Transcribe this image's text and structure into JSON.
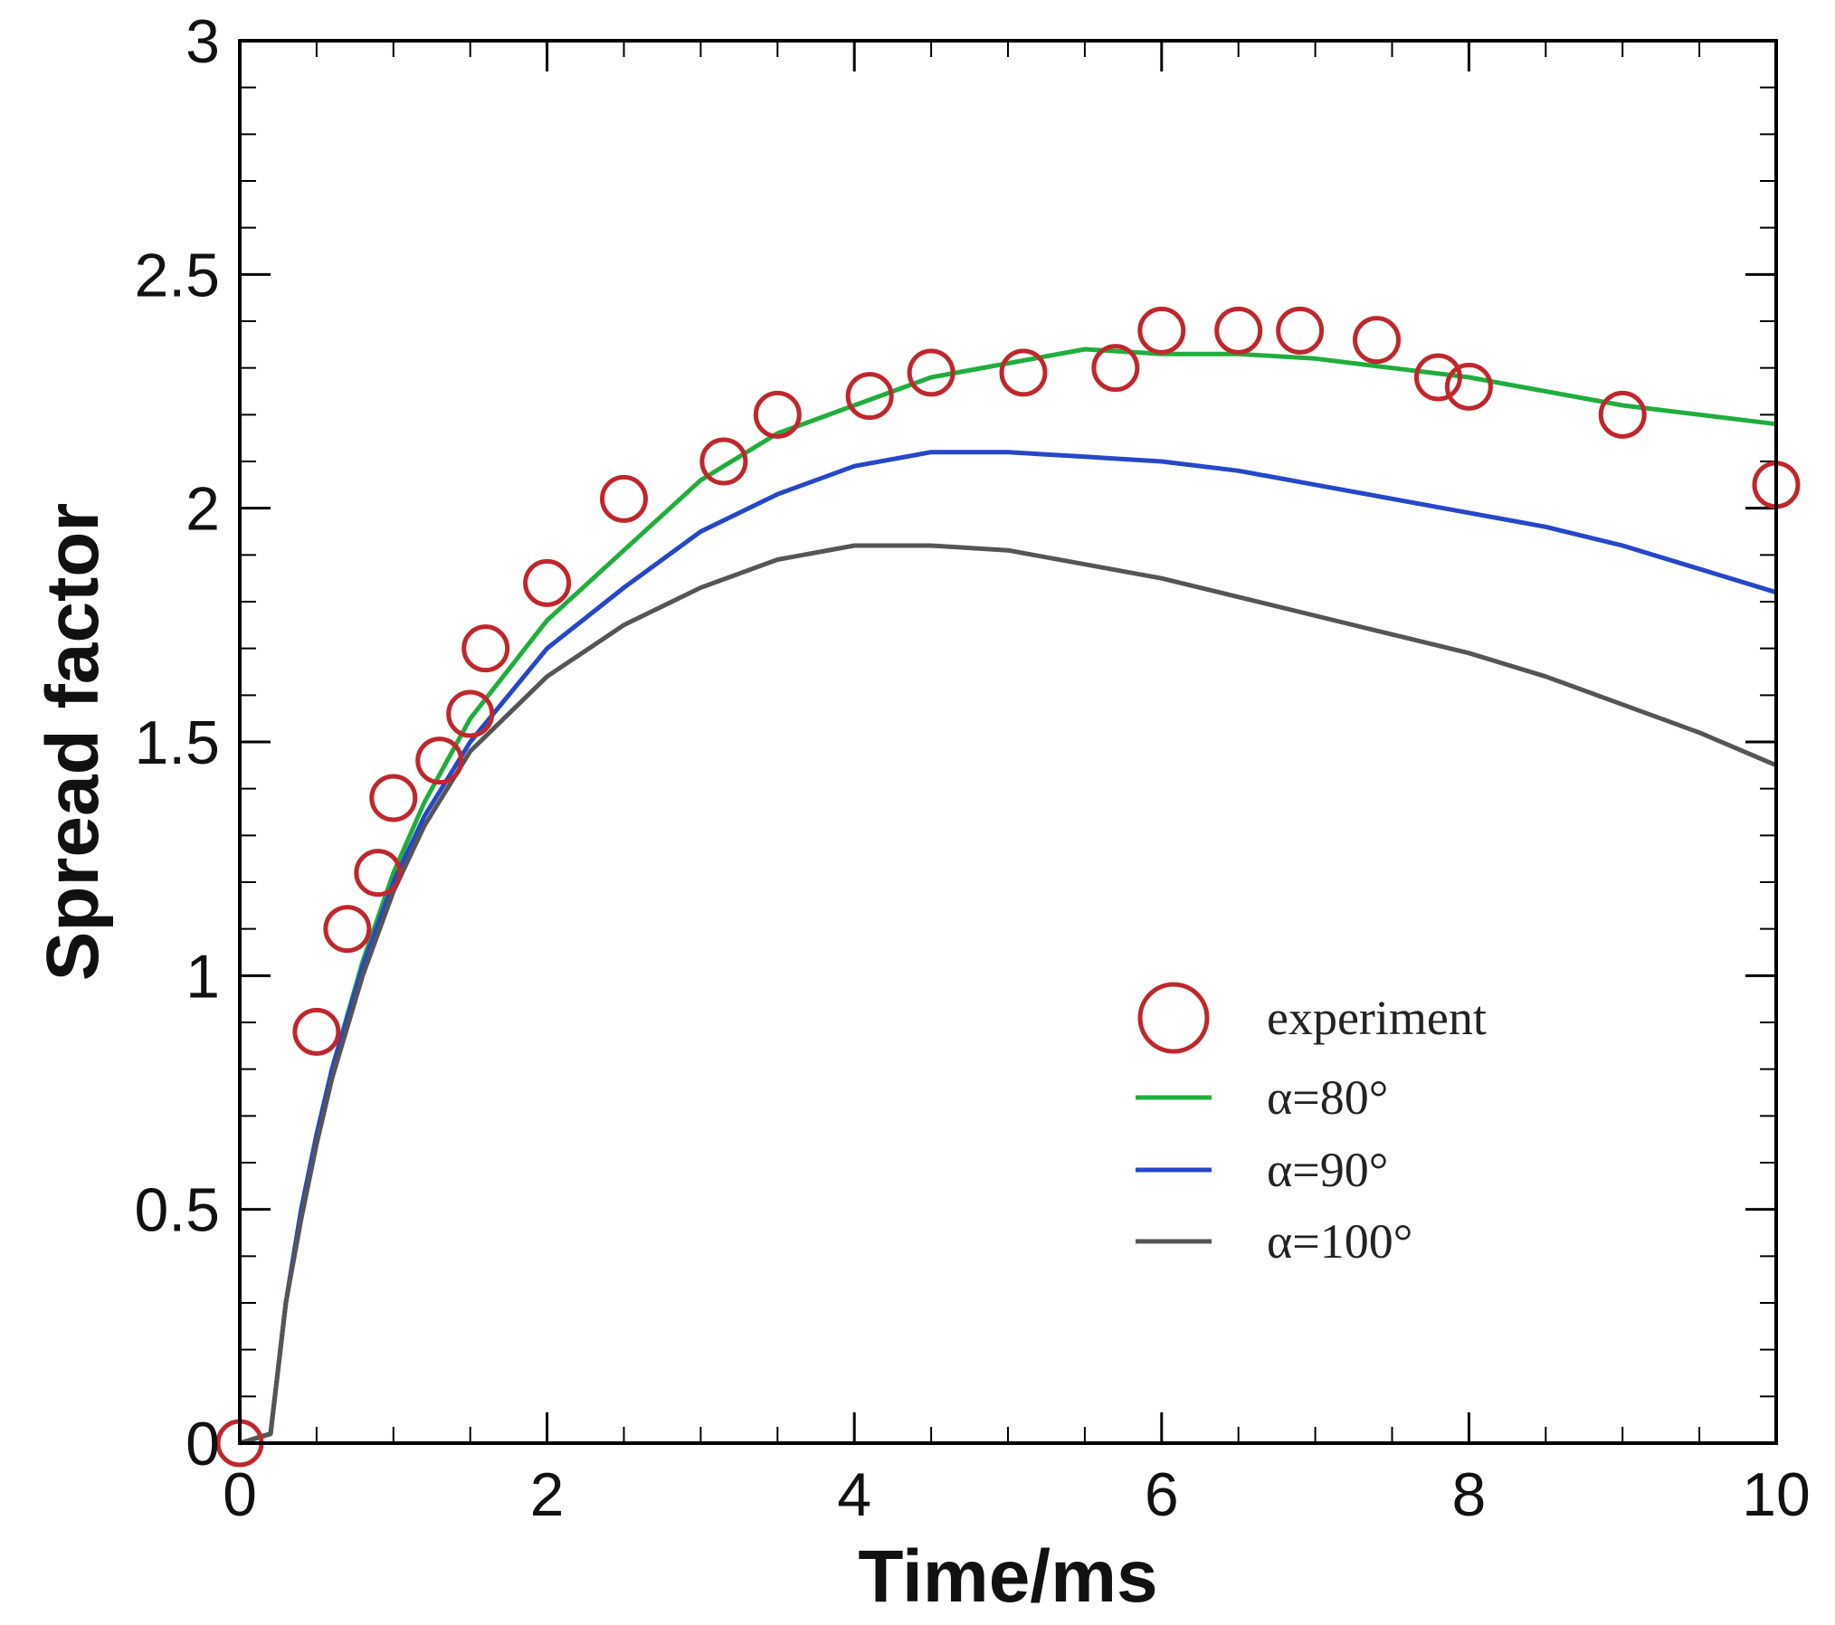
{
  "chart_data": {
    "type": "line",
    "title": "",
    "xlabel": "Time/ms",
    "ylabel": "Spread factor",
    "xlim": [
      0,
      10
    ],
    "ylim": [
      0,
      3
    ],
    "x_ticks": [
      0,
      2,
      4,
      6,
      8,
      10
    ],
    "x_tick_labels": [
      "0",
      "2",
      "4",
      "6",
      "8",
      "10"
    ],
    "y_ticks": [
      0,
      0.5,
      1,
      1.5,
      2,
      2.5,
      3
    ],
    "y_tick_labels": [
      "0",
      "0.5",
      "1",
      "1.5",
      "2",
      "2.5",
      "3"
    ],
    "grid": false,
    "legend_position": "center-right",
    "experiment": {
      "name": "experiment",
      "color": "#c0272d",
      "x": [
        0,
        0.5,
        0.7,
        0.9,
        1.0,
        1.3,
        1.5,
        1.6,
        2.0,
        2.5,
        3.15,
        3.5,
        4.1,
        4.5,
        5.1,
        5.7,
        6.0,
        6.5,
        6.9,
        7.4,
        7.8,
        8.0,
        9.0,
        10.0
      ],
      "y": [
        0,
        0.88,
        1.1,
        1.22,
        1.38,
        1.46,
        1.56,
        1.7,
        1.84,
        2.02,
        2.1,
        2.2,
        2.24,
        2.29,
        2.29,
        2.3,
        2.38,
        2.38,
        2.38,
        2.36,
        2.28,
        2.26,
        2.2,
        2.05
      ]
    },
    "series": [
      {
        "name": "α=80°",
        "color": "#1fae3d",
        "x": [
          0,
          0.2,
          0.3,
          0.4,
          0.5,
          0.6,
          0.8,
          1.0,
          1.2,
          1.5,
          2.0,
          2.5,
          3.0,
          3.5,
          4.0,
          4.5,
          5.0,
          5.5,
          6.0,
          6.5,
          7.0,
          7.5,
          8.0,
          8.5,
          9.0,
          9.5,
          10.0
        ],
        "y": [
          0,
          0.02,
          0.3,
          0.5,
          0.66,
          0.8,
          1.03,
          1.22,
          1.37,
          1.55,
          1.76,
          1.91,
          2.06,
          2.16,
          2.22,
          2.28,
          2.31,
          2.34,
          2.33,
          2.33,
          2.32,
          2.3,
          2.28,
          2.25,
          2.22,
          2.2,
          2.18
        ]
      },
      {
        "name": "α=90°",
        "color": "#2547c8",
        "x": [
          0,
          0.2,
          0.3,
          0.4,
          0.5,
          0.6,
          0.8,
          1.0,
          1.2,
          1.5,
          2.0,
          2.5,
          3.0,
          3.5,
          4.0,
          4.5,
          5.0,
          5.5,
          6.0,
          6.5,
          7.0,
          7.5,
          8.0,
          8.5,
          9.0,
          9.5,
          10.0
        ],
        "y": [
          0,
          0.02,
          0.3,
          0.5,
          0.66,
          0.8,
          1.02,
          1.2,
          1.34,
          1.5,
          1.7,
          1.83,
          1.95,
          2.03,
          2.09,
          2.12,
          2.12,
          2.11,
          2.1,
          2.08,
          2.05,
          2.02,
          1.99,
          1.96,
          1.92,
          1.87,
          1.82
        ]
      },
      {
        "name": "α=100°",
        "color": "#555555",
        "x": [
          0,
          0.2,
          0.3,
          0.4,
          0.5,
          0.6,
          0.8,
          1.0,
          1.2,
          1.5,
          2.0,
          2.5,
          3.0,
          3.5,
          4.0,
          4.5,
          5.0,
          5.5,
          6.0,
          6.5,
          7.0,
          7.5,
          8.0,
          8.5,
          9.0,
          9.5,
          10.0
        ],
        "y": [
          0,
          0.02,
          0.3,
          0.48,
          0.64,
          0.78,
          1.0,
          1.18,
          1.32,
          1.48,
          1.64,
          1.75,
          1.83,
          1.89,
          1.92,
          1.92,
          1.91,
          1.88,
          1.85,
          1.81,
          1.77,
          1.73,
          1.69,
          1.64,
          1.58,
          1.52,
          1.45
        ]
      }
    ],
    "legend": {
      "entries": [
        "experiment",
        "α=80°",
        "α=90°",
        "α=100°"
      ]
    }
  }
}
